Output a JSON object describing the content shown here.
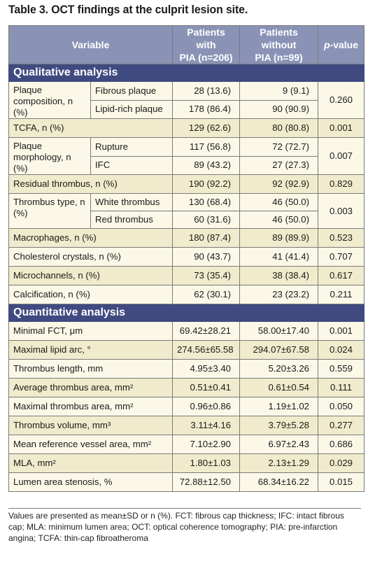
{
  "title": "Table 3. OCT findings at the culprit lesion site.",
  "headers": {
    "variable": "Variable",
    "pia_line1": "Patients with",
    "pia_line2": "PIA (n=206)",
    "nopia_line1": "Patients without",
    "nopia_line2": "PIA (n=99)",
    "p_italic": "p",
    "p_rest": "-value"
  },
  "sections": {
    "qualitative": "Qualitative analysis",
    "quantitative": "Quantitative analysis"
  },
  "qualitative": {
    "plaque_comp": {
      "label": "Plaque composition, n (%)",
      "rows": [
        {
          "sub": "Fibrous plaque",
          "pia": "28 (13.6)",
          "nopia": "9 (9.1)"
        },
        {
          "sub": "Lipid-rich plaque",
          "pia": "178 (86.4)",
          "nopia": "90 (90.9)"
        }
      ],
      "p": "0.260"
    },
    "tcfa": {
      "label": "TCFA, n (%)",
      "pia": "129 (62.6)",
      "nopia": "80 (80.8)",
      "p": "0.001"
    },
    "plaque_morph": {
      "label": "Plaque morphology, n (%)",
      "rows": [
        {
          "sub": "Rupture",
          "pia": "117 (56.8)",
          "nopia": "72 (72.7)"
        },
        {
          "sub": "IFC",
          "pia": "89 (43.2)",
          "nopia": "27 (27.3)"
        }
      ],
      "p": "0.007"
    },
    "residual": {
      "label": "Residual thrombus, n (%)",
      "pia": "190 (92.2)",
      "nopia": "92 (92.9)",
      "p": "0.829"
    },
    "thrombus_type": {
      "label": "Thrombus type, n (%)",
      "rows": [
        {
          "sub": "White thrombus",
          "pia": "130 (68.4)",
          "nopia": "46 (50.0)"
        },
        {
          "sub": "Red thrombus",
          "pia": "60 (31.6)",
          "nopia": "46 (50.0)"
        }
      ],
      "p": "0.003"
    },
    "macrophages": {
      "label": "Macrophages, n (%)",
      "pia": "180 (87.4)",
      "nopia": "89 (89.9)",
      "p": "0.523"
    },
    "cholesterol": {
      "label": "Cholesterol crystals, n (%)",
      "pia": "90 (43.7)",
      "nopia": "41 (41.4)",
      "p": "0.707"
    },
    "microchannels": {
      "label": "Microchannels, n (%)",
      "pia": "73 (35.4)",
      "nopia": "38 (38.4)",
      "p": "0.617"
    },
    "calcification": {
      "label": "Calcification, n (%)",
      "pia": "62 (30.1)",
      "nopia": "23 (23.2)",
      "p": "0.211"
    }
  },
  "quantitative": [
    {
      "label": "Minimal FCT, μm",
      "pia": "69.42±28.21",
      "nopia": "58.00±17.40",
      "p": "0.001"
    },
    {
      "label": "Maximal lipid arc, °",
      "pia": "274.56±65.58",
      "nopia": "294.07±67.58",
      "p": "0.024"
    },
    {
      "label": "Thrombus length, mm",
      "pia": "4.95±3.40",
      "nopia": "5.20±3.26",
      "p": "0.559"
    },
    {
      "label": "Average thrombus area, mm²",
      "pia": "0.51±0.41",
      "nopia": "0.61±0.54",
      "p": "0.111"
    },
    {
      "label": "Maximal thrombus area, mm²",
      "pia": "0.96±0.86",
      "nopia": "1.19±1.02",
      "p": "0.050"
    },
    {
      "label": "Thrombus volume, mm³",
      "pia": "3.11±4.16",
      "nopia": "3.79±5.28",
      "p": "0.277"
    },
    {
      "label": "Mean reference vessel area, mm²",
      "pia": "7.10±2.90",
      "nopia": "6.97±2.43",
      "p": "0.686"
    },
    {
      "label": "MLA, mm²",
      "pia": "1.80±1.03",
      "nopia": "2.13±1.29",
      "p": "0.029"
    },
    {
      "label": "Lumen area stenosis, %",
      "pia": "72.88±12.50",
      "nopia": "68.34±16.22",
      "p": "0.015"
    }
  ],
  "footnote": "Values are presented as mean±SD or n (%). FCT: fibrous cap thickness; IFC: intact fibrous cap; MLA: minimum lumen area; OCT: optical coherence tomography; PIA: pre-infarction angina; TCFA: thin-cap fibroatheroma",
  "colors": {
    "header": "#8a93b6",
    "section": "#3f4a80",
    "row_light": "#fbf8e8",
    "row_dark": "#f0ebcc"
  }
}
